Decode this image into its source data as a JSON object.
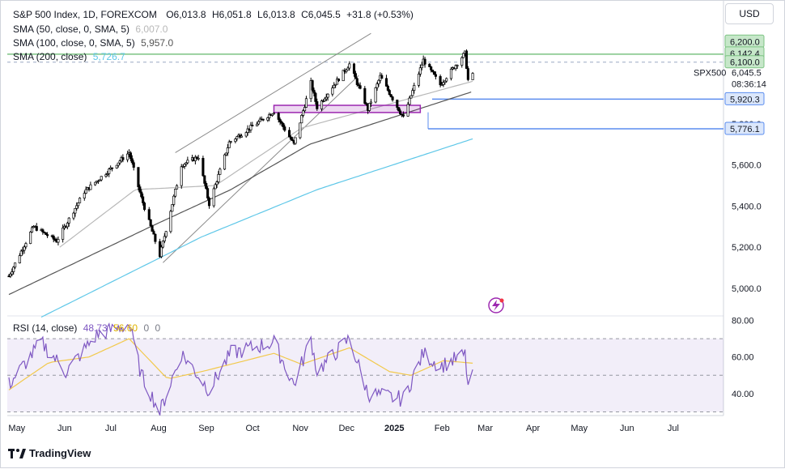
{
  "header": {
    "symbol": "S&P 500 Index, 1D, FOREXCOM",
    "o_label": "O",
    "o": "6,013.8",
    "h_label": "H",
    "h": "6,051.8",
    "l_label": "L",
    "l": "6,013.8",
    "c_label": "C",
    "c": "6,045.5",
    "change": "+31.8 (+0.53%)"
  },
  "indicators": [
    {
      "label": "SMA (50, close, 0, SMA, 5)",
      "value": "6,007.0",
      "color": "#b8b8b8"
    },
    {
      "label": "SMA (100, close, 0, SMA, 5)",
      "value": "5,957.0",
      "color": "#555555"
    },
    {
      "label": "SMA (200, close)",
      "value": "5,726.7",
      "color": "#5ec7e8"
    }
  ],
  "currency": "USD",
  "symbol_tag": "SPX500",
  "countdown": "08:36:14",
  "price_badges": [
    {
      "text": "6,200.0",
      "bg": "#c6e7c9",
      "border": "#7cc383"
    },
    {
      "text": "6,142.4",
      "bg": "#c6e7c9",
      "border": "#7cc383"
    },
    {
      "text": "6,100.0",
      "bg": "#c6e7c9",
      "border": "#7cc383"
    },
    {
      "text": "5,920.3",
      "bg": "#dbe7fb",
      "border": "#5b8def"
    },
    {
      "text": "5,776.1",
      "bg": "#dbe7fb",
      "border": "#5b8def"
    }
  ],
  "rsi": {
    "label": "RSI (14, close)",
    "value": "48.73",
    "ma_value": "56.60",
    "extra1": "0",
    "extra2": "0"
  },
  "brand": "TradingView",
  "colors": {
    "up": "#000000",
    "sma50": "#b8b8b8",
    "sma100": "#555555",
    "sma200": "#5ec7e8",
    "rsi": "#7e57c2",
    "rsi_ma": "#f2c94c",
    "box": "#9c27b0",
    "resistance": "#7cc383",
    "support": "#5b8def"
  },
  "chart_data": [
    {
      "type": "candlestick",
      "title": "S&P 500 Index, 1D, FOREXCOM",
      "x_ticks": [
        "May",
        "Jun",
        "Jul",
        "Aug",
        "Sep",
        "Oct",
        "Nov",
        "Dec",
        "2025",
        "Feb",
        "Mar",
        "Apr",
        "May",
        "Jun",
        "Jul"
      ],
      "y_ticks": [
        "5,000.0",
        "5,200.0",
        "5,400.0",
        "5,600.0",
        "5,800.0"
      ],
      "ylim": [
        4870,
        6280
      ],
      "close_anchors": [
        {
          "date": "2024-04-29",
          "close": 5060
        },
        {
          "date": "2024-05-15",
          "close": 5300
        },
        {
          "date": "2024-05-30",
          "close": 5230
        },
        {
          "date": "2024-06-17",
          "close": 5470
        },
        {
          "date": "2024-07-16",
          "close": 5660
        },
        {
          "date": "2024-07-24",
          "close": 5440
        },
        {
          "date": "2024-08-05",
          "close": 5160
        },
        {
          "date": "2024-08-19",
          "close": 5600
        },
        {
          "date": "2024-08-30",
          "close": 5640
        },
        {
          "date": "2024-09-06",
          "close": 5410
        },
        {
          "date": "2024-09-19",
          "close": 5710
        },
        {
          "date": "2024-10-18",
          "close": 5860
        },
        {
          "date": "2024-10-31",
          "close": 5700
        },
        {
          "date": "2024-11-11",
          "close": 6000
        },
        {
          "date": "2024-11-15",
          "close": 5880
        },
        {
          "date": "2024-12-06",
          "close": 6090
        },
        {
          "date": "2024-12-18",
          "close": 5870
        },
        {
          "date": "2024-12-26",
          "close": 6030
        },
        {
          "date": "2025-01-10",
          "close": 5830
        },
        {
          "date": "2025-01-23",
          "close": 6110
        },
        {
          "date": "2025-02-03",
          "close": 5990
        },
        {
          "date": "2025-02-19",
          "close": 6144
        },
        {
          "date": "2025-02-21",
          "close": 6013
        },
        {
          "date": "2025-02-24",
          "close": 6045.5
        }
      ],
      "last_bar": {
        "open": 6013.8,
        "high": 6051.8,
        "low": 6013.8,
        "close": 6045.5
      },
      "sma_anchors": {
        "sma50": [
          {
            "date": "2024-06-01",
            "value": 5200
          },
          {
            "date": "2024-07-20",
            "value": 5480
          },
          {
            "date": "2024-09-10",
            "value": 5500
          },
          {
            "date": "2024-11-05",
            "value": 5780
          },
          {
            "date": "2025-02-24",
            "value": 6007
          }
        ],
        "sma100": [
          {
            "date": "2024-04-29",
            "value": 4970
          },
          {
            "date": "2024-07-30",
            "value": 5300
          },
          {
            "date": "2024-09-20",
            "value": 5480
          },
          {
            "date": "2024-11-10",
            "value": 5700
          },
          {
            "date": "2025-02-24",
            "value": 5957
          }
        ],
        "sma200": [
          {
            "date": "2024-05-20",
            "value": 4860
          },
          {
            "date": "2024-09-01",
            "value": 5250
          },
          {
            "date": "2024-11-15",
            "value": 5480
          },
          {
            "date": "2025-02-24",
            "value": 5727
          }
        ]
      },
      "levels": [
        6142.4,
        6100.0,
        5920.3,
        5776.1
      ],
      "zone": {
        "from": "2024-10-18",
        "to": "2025-01-21",
        "low": 5855,
        "high": 5890
      }
    },
    {
      "type": "line",
      "title": "RSI (14, close)",
      "y_ticks": [
        "40.00",
        "60.00",
        "80.00"
      ],
      "ylim": [
        28,
        82
      ],
      "bands": [
        30,
        50,
        70
      ],
      "series": [
        {
          "name": "RSI",
          "anchors": [
            {
              "date": "2024-04-29",
              "value": 45
            },
            {
              "date": "2024-05-20",
              "value": 68
            },
            {
              "date": "2024-06-05",
              "value": 52
            },
            {
              "date": "2024-06-25",
              "value": 72
            },
            {
              "date": "2024-07-16",
              "value": 78
            },
            {
              "date": "2024-07-24",
              "value": 50
            },
            {
              "date": "2024-08-05",
              "value": 30
            },
            {
              "date": "2024-08-19",
              "value": 62
            },
            {
              "date": "2024-09-06",
              "value": 42
            },
            {
              "date": "2024-09-20",
              "value": 62
            },
            {
              "date": "2024-10-18",
              "value": 68
            },
            {
              "date": "2024-10-31",
              "value": 45
            },
            {
              "date": "2024-11-11",
              "value": 70
            },
            {
              "date": "2024-11-15",
              "value": 52
            },
            {
              "date": "2024-12-06",
              "value": 70
            },
            {
              "date": "2024-12-18",
              "value": 40
            },
            {
              "date": "2025-01-10",
              "value": 37
            },
            {
              "date": "2025-01-23",
              "value": 62
            },
            {
              "date": "2025-02-03",
              "value": 55
            },
            {
              "date": "2025-02-19",
              "value": 61
            },
            {
              "date": "2025-02-21",
              "value": 44
            },
            {
              "date": "2025-02-24",
              "value": 48.73
            }
          ]
        },
        {
          "name": "RSI-based MA",
          "anchors": [
            {
              "date": "2024-04-29",
              "value": 42
            },
            {
              "date": "2024-05-25",
              "value": 57
            },
            {
              "date": "2024-06-20",
              "value": 60
            },
            {
              "date": "2024-07-16",
              "value": 70
            },
            {
              "date": "2024-08-10",
              "value": 48
            },
            {
              "date": "2024-09-01",
              "value": 52
            },
            {
              "date": "2024-09-20",
              "value": 56
            },
            {
              "date": "2024-10-18",
              "value": 62
            },
            {
              "date": "2024-11-05",
              "value": 56
            },
            {
              "date": "2024-12-06",
              "value": 65
            },
            {
              "date": "2025-01-01",
              "value": 52
            },
            {
              "date": "2025-01-15",
              "value": 50
            },
            {
              "date": "2025-02-05",
              "value": 58
            },
            {
              "date": "2025-02-24",
              "value": 56.6
            }
          ]
        }
      ]
    }
  ]
}
